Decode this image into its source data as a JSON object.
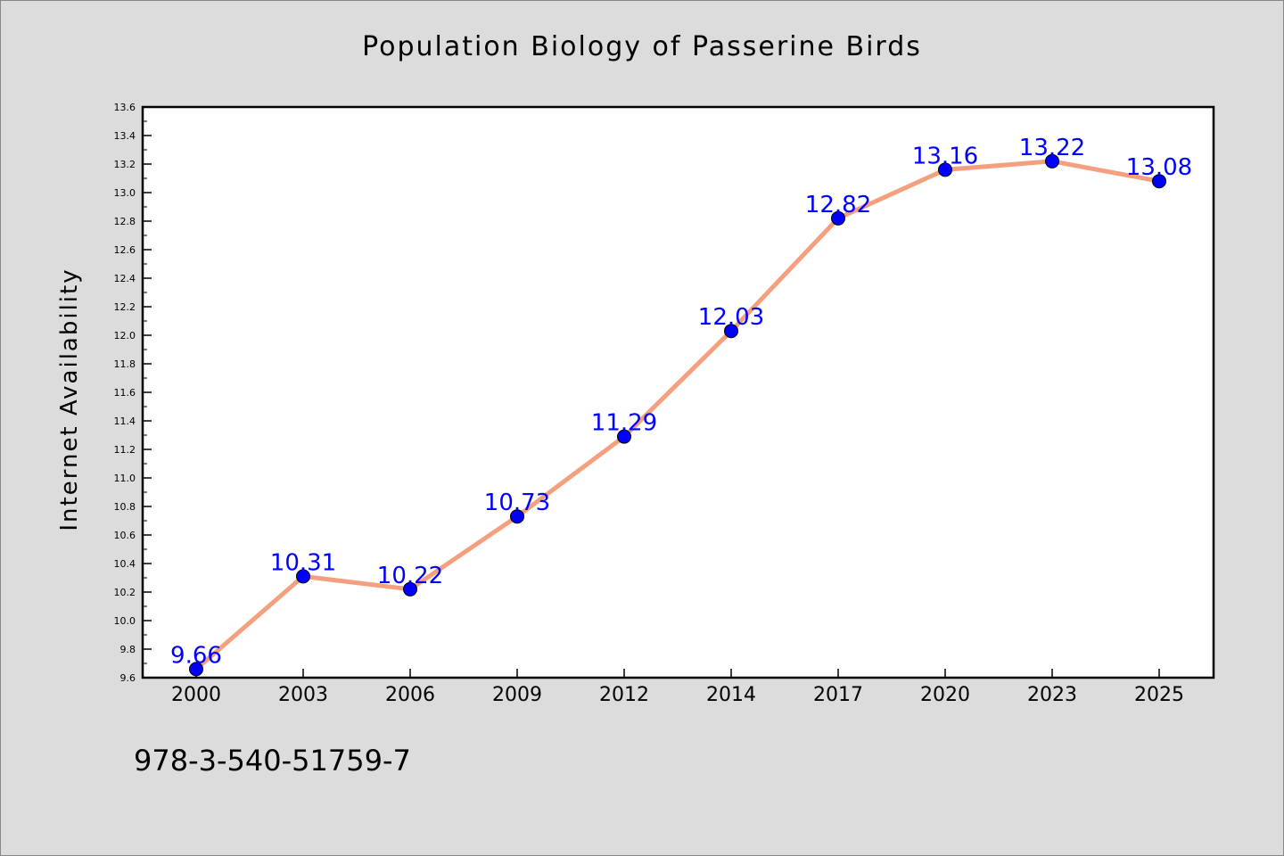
{
  "chart_data": {
    "type": "line",
    "title": "Population Biology of Passerine Birds",
    "xlabel": "",
    "ylabel": "Internet Availability",
    "categories": [
      "2000",
      "2003",
      "2006",
      "2009",
      "2012",
      "2014",
      "2017",
      "2020",
      "2023",
      "2025"
    ],
    "series": [
      {
        "values": [
          9.66,
          10.31,
          10.22,
          10.73,
          11.29,
          12.03,
          12.82,
          13.16,
          13.22,
          13.08
        ],
        "line_color": "#f4a07e",
        "marker_color": "#0000ff"
      }
    ],
    "data_labels": [
      "9.66",
      "10.31",
      "10.22",
      "10.73",
      "11.29",
      "12.03",
      "12.82",
      "13.16",
      "13.22",
      "13.08"
    ],
    "ylim": [
      9.6,
      13.6
    ],
    "yticks": [
      "9.6",
      "9.8",
      "10.0",
      "10.2",
      "10.4",
      "10.6",
      "10.8",
      "11.0",
      "11.2",
      "11.4",
      "11.6",
      "11.8",
      "12.0",
      "12.2",
      "12.4",
      "12.6",
      "12.8",
      "13.0",
      "13.2",
      "13.4",
      "13.6"
    ],
    "grid": false,
    "label_color": "#0000ff"
  },
  "footer": {
    "code": "978-3-540-51759-7"
  }
}
